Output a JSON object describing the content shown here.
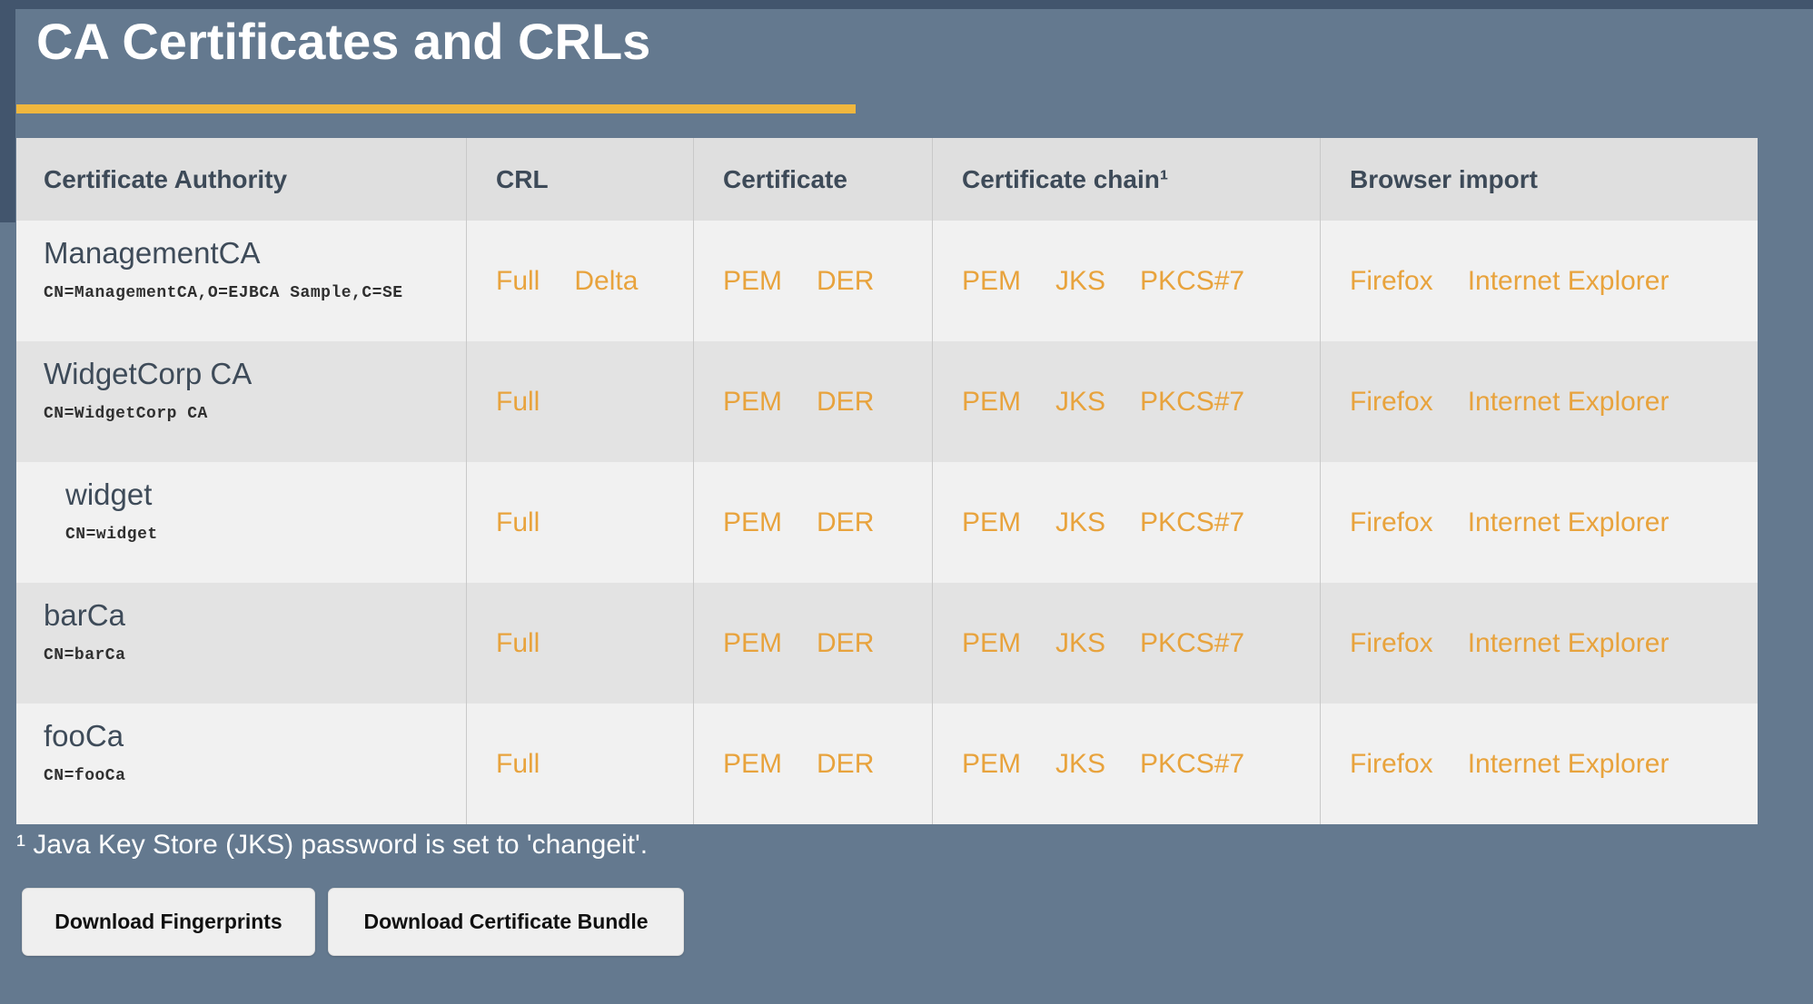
{
  "page": {
    "title": "CA Certificates and CRLs",
    "footnote": "¹ Java Key Store (JKS) password is set to 'changeit'.",
    "colors": {
      "background": "#64798F",
      "frame": "#42556D",
      "accent_rule": "#F0B73E",
      "link": "#E8A33D",
      "header_text": "#3D4A58",
      "row_light": "#F1F1F1",
      "row_dark": "#E3E3E3"
    }
  },
  "table": {
    "columns": [
      "Certificate Authority",
      "CRL",
      "Certificate",
      "Certificate chain¹",
      "Browser import"
    ],
    "rows": [
      {
        "name": "ManagementCA",
        "dn": "CN=ManagementCA,O=EJBCA Sample,C=SE",
        "crl": [
          "Full",
          "Delta"
        ],
        "certificate": [
          "PEM",
          "DER"
        ],
        "chain": [
          "PEM",
          "JKS",
          "PKCS#7"
        ],
        "browser": [
          "Firefox",
          "Internet Explorer"
        ]
      },
      {
        "name": "WidgetCorp CA",
        "dn": "CN=WidgetCorp CA",
        "crl": [
          "Full"
        ],
        "certificate": [
          "PEM",
          "DER"
        ],
        "chain": [
          "PEM",
          "JKS",
          "PKCS#7"
        ],
        "browser": [
          "Firefox",
          "Internet Explorer"
        ]
      },
      {
        "name": "widget",
        "dn": "CN=widget",
        "crl": [
          "Full"
        ],
        "certificate": [
          "PEM",
          "DER"
        ],
        "chain": [
          "PEM",
          "JKS",
          "PKCS#7"
        ],
        "browser": [
          "Firefox",
          "Internet Explorer"
        ]
      },
      {
        "name": "barCa",
        "dn": "CN=barCa",
        "crl": [
          "Full"
        ],
        "certificate": [
          "PEM",
          "DER"
        ],
        "chain": [
          "PEM",
          "JKS",
          "PKCS#7"
        ],
        "browser": [
          "Firefox",
          "Internet Explorer"
        ]
      },
      {
        "name": "fooCa",
        "dn": "CN=fooCa",
        "crl": [
          "Full"
        ],
        "certificate": [
          "PEM",
          "DER"
        ],
        "chain": [
          "PEM",
          "JKS",
          "PKCS#7"
        ],
        "browser": [
          "Firefox",
          "Internet Explorer"
        ]
      }
    ]
  },
  "buttons": {
    "fingerprints": "Download Fingerprints",
    "bundle": "Download Certificate Bundle"
  }
}
